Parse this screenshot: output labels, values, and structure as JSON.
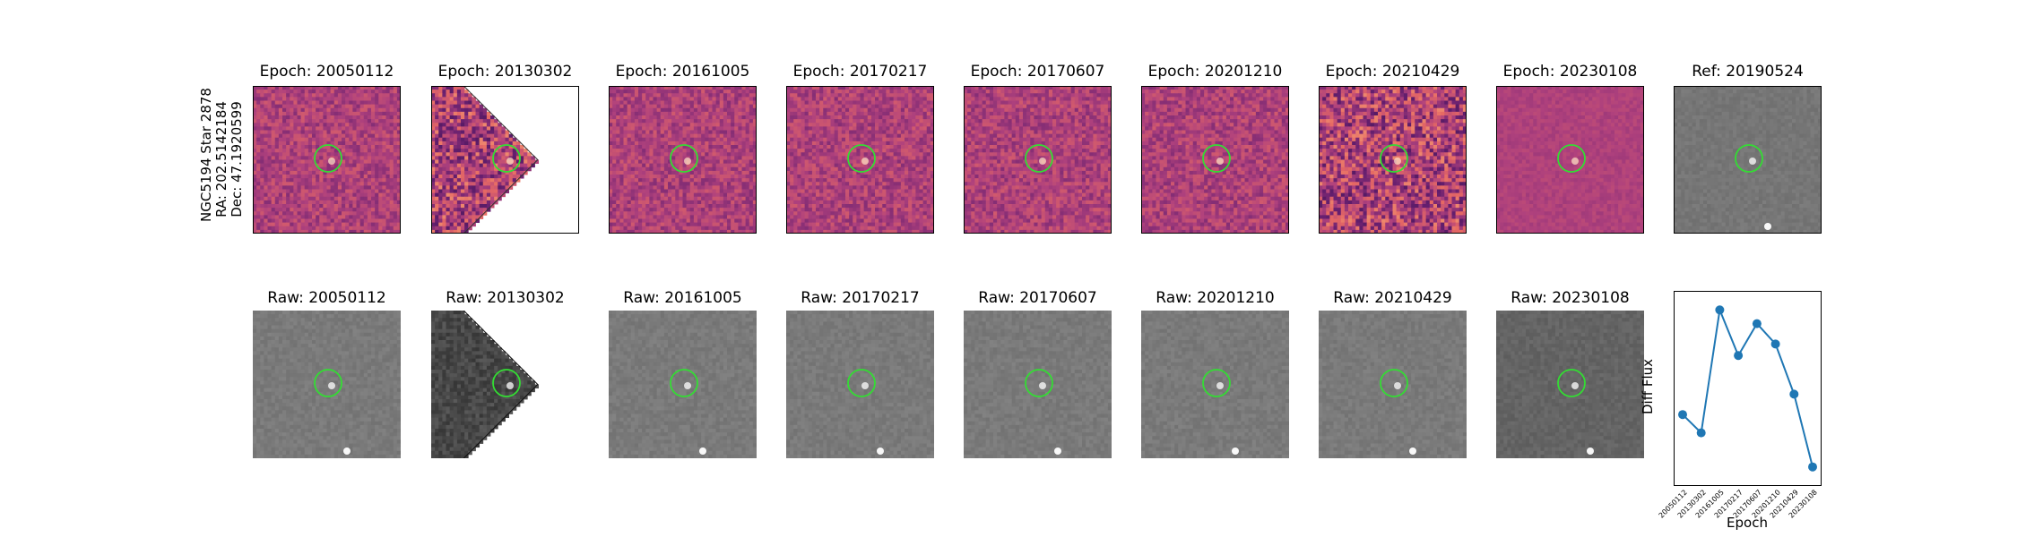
{
  "target": {
    "name_line": "NGC5194 Star 2878",
    "ra_line": "RA: 202.5142184",
    "dec_line": "Dec: 47.1920599"
  },
  "diff_row": {
    "titles": [
      "Epoch: 20050112",
      "Epoch: 20130302",
      "Epoch: 20161005",
      "Epoch: 20170217",
      "Epoch: 20170607",
      "Epoch: 20201210",
      "Epoch: 20210429",
      "Epoch: 20230108"
    ],
    "ref_title": "Ref: 20190524"
  },
  "raw_row": {
    "titles": [
      "Raw: 20050112",
      "Raw: 20130302",
      "Raw: 20161005",
      "Raw: 20170217",
      "Raw: 20170607",
      "Raw: 20201210",
      "Raw: 20210429",
      "Raw: 20230108"
    ]
  },
  "colors": {
    "circle": "#33dd33",
    "line": "#1f77b4",
    "diff_base": "#b24a7c",
    "raw_base": "#808080"
  },
  "chart_data": {
    "type": "line",
    "title": "",
    "xlabel": "Epoch",
    "ylabel": "Diff Flux",
    "categories": [
      "20050112",
      "20130302",
      "20161005",
      "20170217",
      "20170607",
      "20201210",
      "20210429",
      "20230108"
    ],
    "values": [
      0.46,
      0.38,
      0.92,
      0.72,
      0.86,
      0.77,
      0.55,
      0.23
    ],
    "ylim": [
      0.15,
      1.0
    ],
    "grid": false,
    "marker": "circle"
  }
}
